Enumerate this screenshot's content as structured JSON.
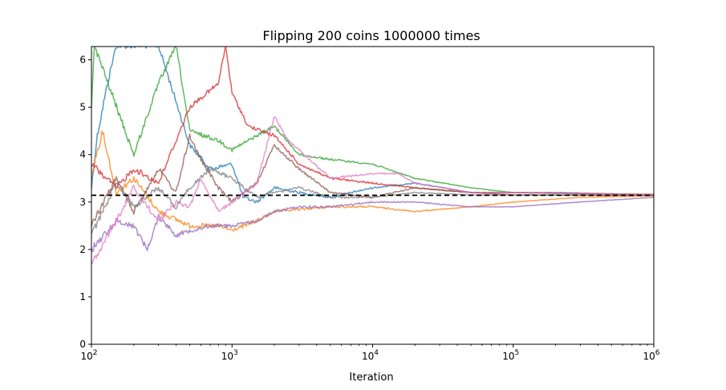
{
  "chart_data": {
    "type": "line",
    "title": "Flipping 200 coins 1000000 times",
    "xlabel": "Iteration",
    "ylabel": "",
    "xscale": "log",
    "xlim": [
      100,
      1000000
    ],
    "ylim": [
      0,
      6.28
    ],
    "grid": false,
    "legend": "none",
    "xticks": [
      {
        "value": 100,
        "base": "10",
        "exp": "2"
      },
      {
        "value": 1000,
        "base": "10",
        "exp": "3"
      },
      {
        "value": 10000,
        "base": "10",
        "exp": "4"
      },
      {
        "value": 100000,
        "base": "10",
        "exp": "5"
      },
      {
        "value": 1000000,
        "base": "10",
        "exp": "6"
      }
    ],
    "yticks": [
      "0",
      "1",
      "2",
      "3",
      "4",
      "5",
      "6"
    ],
    "reference_line": {
      "y": 3.14159,
      "style": "dashed",
      "color": "#000000"
    },
    "series": [
      {
        "color": "#1f77b4",
        "points": [
          [
            100,
            3.3
          ],
          [
            110,
            4.4
          ],
          [
            130,
            5.5
          ],
          [
            150,
            6.3
          ],
          [
            300,
            6.3
          ],
          [
            500,
            4.2
          ],
          [
            700,
            3.7
          ],
          [
            1000,
            3.8
          ],
          [
            1200,
            3.1
          ],
          [
            1500,
            3.0
          ],
          [
            2000,
            3.3
          ],
          [
            3000,
            3.2
          ],
          [
            5000,
            3.1
          ],
          [
            10000,
            3.3
          ],
          [
            20000,
            3.4
          ],
          [
            50000,
            3.2
          ],
          [
            100000,
            3.2
          ],
          [
            200000,
            3.2
          ],
          [
            1000000,
            3.15
          ]
        ]
      },
      {
        "color": "#ff7f0e",
        "points": [
          [
            100,
            3.6
          ],
          [
            120,
            4.5
          ],
          [
            150,
            3.2
          ],
          [
            200,
            3.5
          ],
          [
            300,
            2.8
          ],
          [
            500,
            2.5
          ],
          [
            800,
            2.5
          ],
          [
            1000,
            2.4
          ],
          [
            1500,
            2.6
          ],
          [
            2000,
            2.8
          ],
          [
            5000,
            2.9
          ],
          [
            10000,
            2.9
          ],
          [
            20000,
            2.8
          ],
          [
            50000,
            2.9
          ],
          [
            100000,
            3.0
          ],
          [
            300000,
            3.1
          ],
          [
            1000000,
            3.13
          ]
        ]
      },
      {
        "color": "#2ca02c",
        "points": [
          [
            100,
            5.0
          ],
          [
            105,
            6.3
          ],
          [
            200,
            4.0
          ],
          [
            300,
            5.5
          ],
          [
            400,
            6.3
          ],
          [
            500,
            4.5
          ],
          [
            800,
            4.3
          ],
          [
            1000,
            4.1
          ],
          [
            1500,
            4.4
          ],
          [
            2000,
            4.6
          ],
          [
            3000,
            4.0
          ],
          [
            5000,
            3.9
          ],
          [
            10000,
            3.8
          ],
          [
            20000,
            3.5
          ],
          [
            50000,
            3.3
          ],
          [
            100000,
            3.2
          ],
          [
            300000,
            3.17
          ],
          [
            1000000,
            3.15
          ]
        ]
      },
      {
        "color": "#d62728",
        "points": [
          [
            100,
            3.8
          ],
          [
            150,
            3.3
          ],
          [
            200,
            3.7
          ],
          [
            300,
            3.4
          ],
          [
            500,
            5.0
          ],
          [
            800,
            5.5
          ],
          [
            900,
            6.3
          ],
          [
            1000,
            5.3
          ],
          [
            1300,
            4.6
          ],
          [
            2000,
            4.4
          ],
          [
            3000,
            3.8
          ],
          [
            5000,
            3.5
          ],
          [
            10000,
            3.4
          ],
          [
            20000,
            3.3
          ],
          [
            50000,
            3.2
          ],
          [
            100000,
            3.2
          ],
          [
            1000000,
            3.16
          ]
        ]
      },
      {
        "color": "#9467bd",
        "points": [
          [
            100,
            2.0
          ],
          [
            150,
            2.6
          ],
          [
            200,
            2.5
          ],
          [
            250,
            2.0
          ],
          [
            300,
            2.7
          ],
          [
            400,
            2.3
          ],
          [
            500,
            2.4
          ],
          [
            700,
            2.5
          ],
          [
            1000,
            2.5
          ],
          [
            1500,
            2.6
          ],
          [
            2000,
            2.8
          ],
          [
            3000,
            2.9
          ],
          [
            5000,
            2.9
          ],
          [
            10000,
            3.0
          ],
          [
            20000,
            3.0
          ],
          [
            50000,
            2.9
          ],
          [
            100000,
            2.9
          ],
          [
            300000,
            3.0
          ],
          [
            1000000,
            3.1
          ]
        ]
      },
      {
        "color": "#8c564b",
        "points": [
          [
            100,
            2.5
          ],
          [
            150,
            3.5
          ],
          [
            200,
            2.8
          ],
          [
            300,
            3.7
          ],
          [
            400,
            3.2
          ],
          [
            500,
            4.4
          ],
          [
            600,
            3.9
          ],
          [
            800,
            3.3
          ],
          [
            1000,
            3.0
          ],
          [
            1500,
            3.4
          ],
          [
            2000,
            4.2
          ],
          [
            3000,
            3.7
          ],
          [
            5000,
            3.2
          ],
          [
            10000,
            3.1
          ],
          [
            20000,
            3.3
          ],
          [
            50000,
            3.2
          ],
          [
            100000,
            3.15
          ],
          [
            1000000,
            3.14
          ]
        ]
      },
      {
        "color": "#e377c2",
        "points": [
          [
            100,
            1.7
          ],
          [
            150,
            2.6
          ],
          [
            200,
            3.3
          ],
          [
            300,
            2.6
          ],
          [
            400,
            3.0
          ],
          [
            500,
            2.9
          ],
          [
            600,
            3.5
          ],
          [
            800,
            2.8
          ],
          [
            1000,
            3.0
          ],
          [
            1500,
            3.4
          ],
          [
            2000,
            4.8
          ],
          [
            2500,
            4.3
          ],
          [
            3000,
            4.1
          ],
          [
            5000,
            3.5
          ],
          [
            10000,
            3.6
          ],
          [
            15000,
            3.6
          ],
          [
            20000,
            3.4
          ],
          [
            50000,
            3.2
          ],
          [
            100000,
            3.2
          ],
          [
            1000000,
            3.15
          ]
        ]
      },
      {
        "color": "#7f7f7f",
        "points": [
          [
            100,
            2.3
          ],
          [
            150,
            3.4
          ],
          [
            200,
            2.9
          ],
          [
            300,
            3.3
          ],
          [
            400,
            2.9
          ],
          [
            500,
            3.3
          ],
          [
            700,
            3.7
          ],
          [
            1000,
            3.5
          ],
          [
            1500,
            3.1
          ],
          [
            2000,
            3.2
          ],
          [
            3000,
            3.3
          ],
          [
            5000,
            3.1
          ],
          [
            10000,
            3.1
          ],
          [
            20000,
            3.2
          ],
          [
            50000,
            3.15
          ],
          [
            1000000,
            3.14
          ]
        ]
      }
    ]
  }
}
